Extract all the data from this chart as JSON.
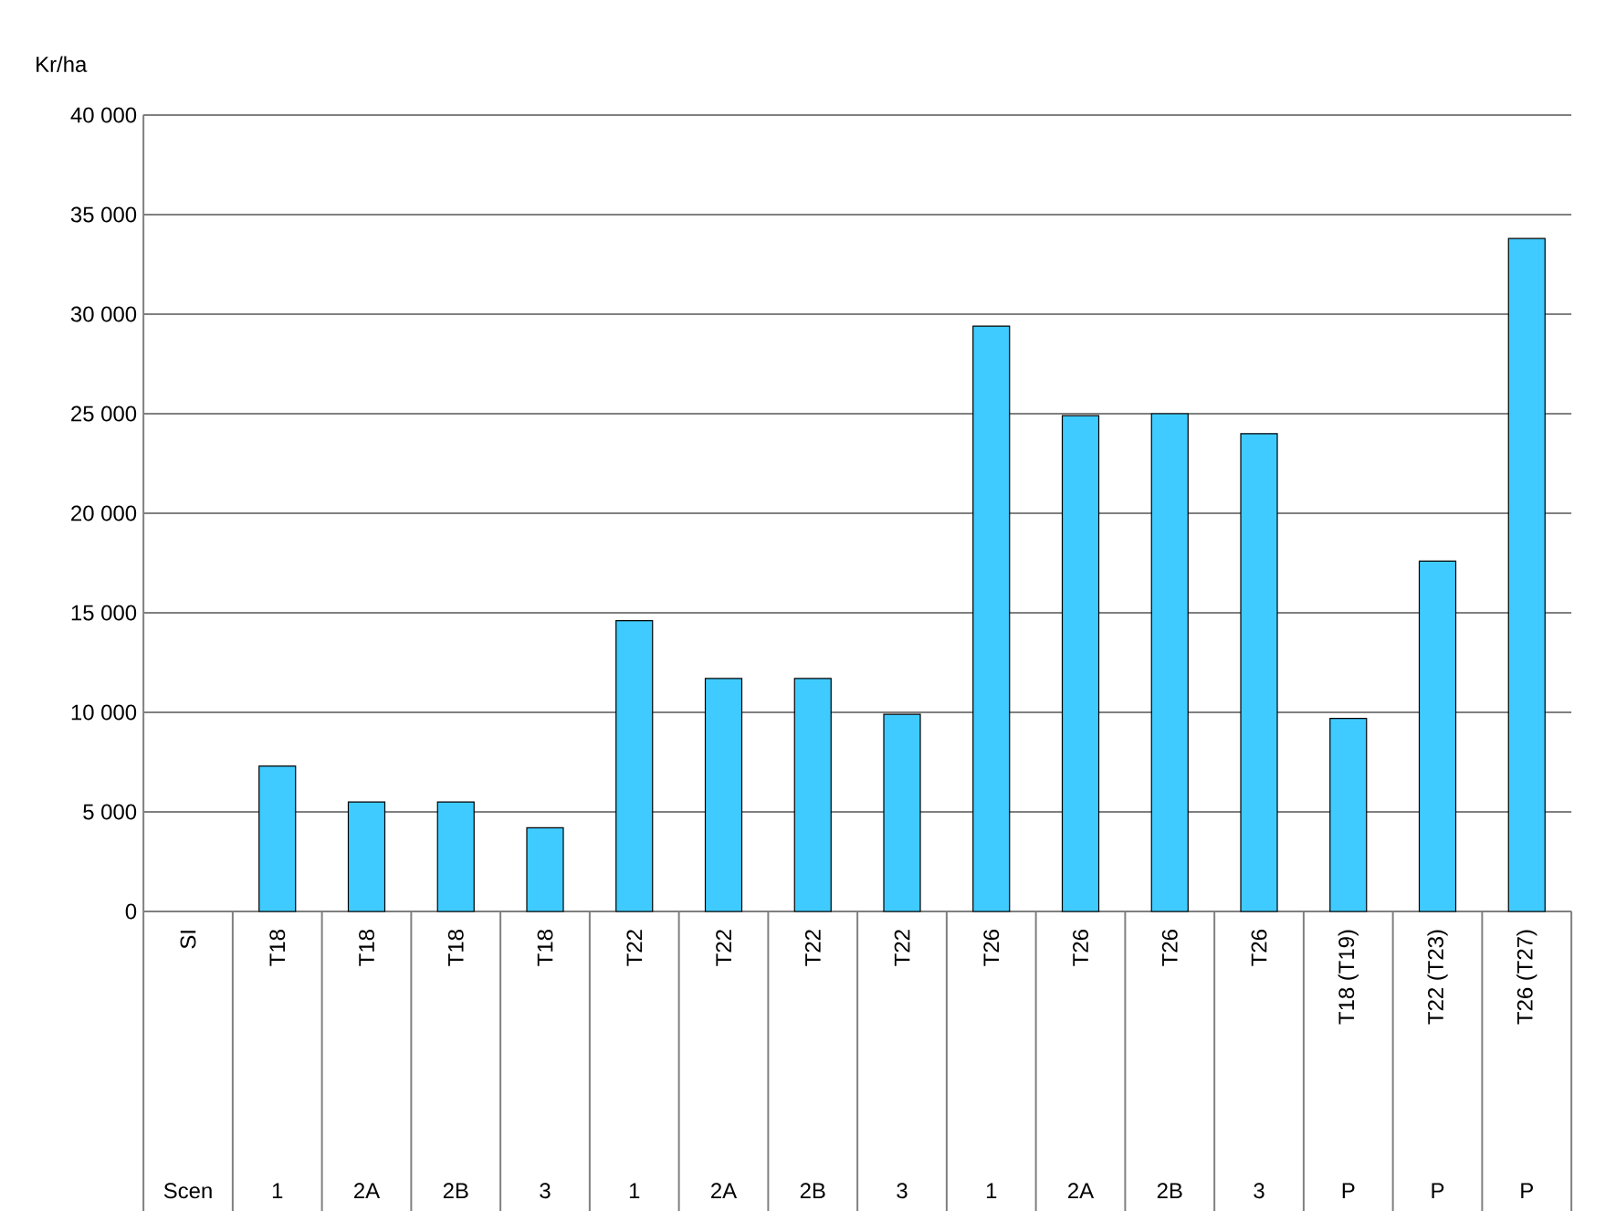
{
  "chart_data": {
    "type": "bar",
    "ylabel": "Kr/ha",
    "categories": [
      "SI",
      "T18",
      "T18",
      "T18",
      "T18",
      "T22",
      "T22",
      "T22",
      "T22",
      "T26",
      "T26",
      "T26",
      "T26",
      "T18 (T19)",
      "T22 (T23)",
      "T26 (T27)"
    ],
    "annotations": [
      "Scen",
      "1",
      "2A",
      "2B",
      "3",
      "1",
      "2A",
      "2B",
      "3",
      "1",
      "2A",
      "2B",
      "3",
      "P",
      "P",
      "P"
    ],
    "values": [
      null,
      7300,
      5500,
      5500,
      4200,
      14600,
      11700,
      11700,
      9900,
      29400,
      24900,
      25000,
      24000,
      9700,
      17600,
      33800
    ],
    "color": "#3fcbff",
    "ylim": [
      0,
      40000
    ],
    "yticks": [
      {
        "value": 0,
        "label": "0"
      },
      {
        "value": 5000,
        "label": "5 000"
      },
      {
        "value": 10000,
        "label": "10 000"
      },
      {
        "value": 15000,
        "label": "15 000"
      },
      {
        "value": 20000,
        "label": "20 000"
      },
      {
        "value": 25000,
        "label": "25 000"
      },
      {
        "value": 30000,
        "label": "30 000"
      },
      {
        "value": 35000,
        "label": "35 000"
      },
      {
        "value": 40000,
        "label": "40 000"
      }
    ],
    "grid": "y"
  }
}
